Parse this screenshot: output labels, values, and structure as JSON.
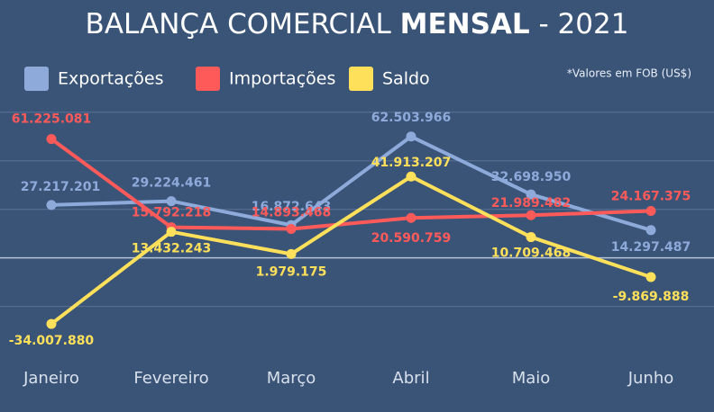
{
  "chart_data": {
    "type": "line",
    "title": [
      "BALANÇA COMERCIAL",
      "MENSAL",
      "- 2021"
    ],
    "note": "*Valores em FOB (US$)",
    "categories": [
      "Janeiro",
      "Fevereiro",
      "Março",
      "Abril",
      "Maio",
      "Junho"
    ],
    "series": [
      {
        "name": "Exportações",
        "color": "#8eaadb",
        "values": [
          27217201,
          29224461,
          16872643,
          62503966,
          32698950,
          14297487
        ],
        "value_labels": [
          "27.217.201",
          "29.224.461",
          "16.872.643",
          "62.503.966",
          "32.698.950",
          "14.297.487"
        ]
      },
      {
        "name": "Importações",
        "color": "#ff5a5a",
        "values": [
          61225081,
          15792218,
          14893468,
          20590759,
          21989482,
          24167375
        ],
        "value_labels": [
          "61.225.081",
          "15.792.218",
          "14.893.468",
          "20.590.759",
          "21.989.482",
          "24.167.375"
        ]
      },
      {
        "name": "Saldo",
        "color": "#ffe05a",
        "values": [
          -34007880,
          13432243,
          1979175,
          41913207,
          10709468,
          -9869888
        ],
        "value_labels": [
          "-34.007.880",
          "13.432.243",
          "1.979.175",
          "41.913.207",
          "10.709.468",
          "-9.869.888"
        ]
      }
    ],
    "ylim": [
      -40000000,
      80000000
    ],
    "yticks": [
      -25000000,
      0,
      25000000,
      50000000,
      75000000
    ],
    "grid": true
  }
}
